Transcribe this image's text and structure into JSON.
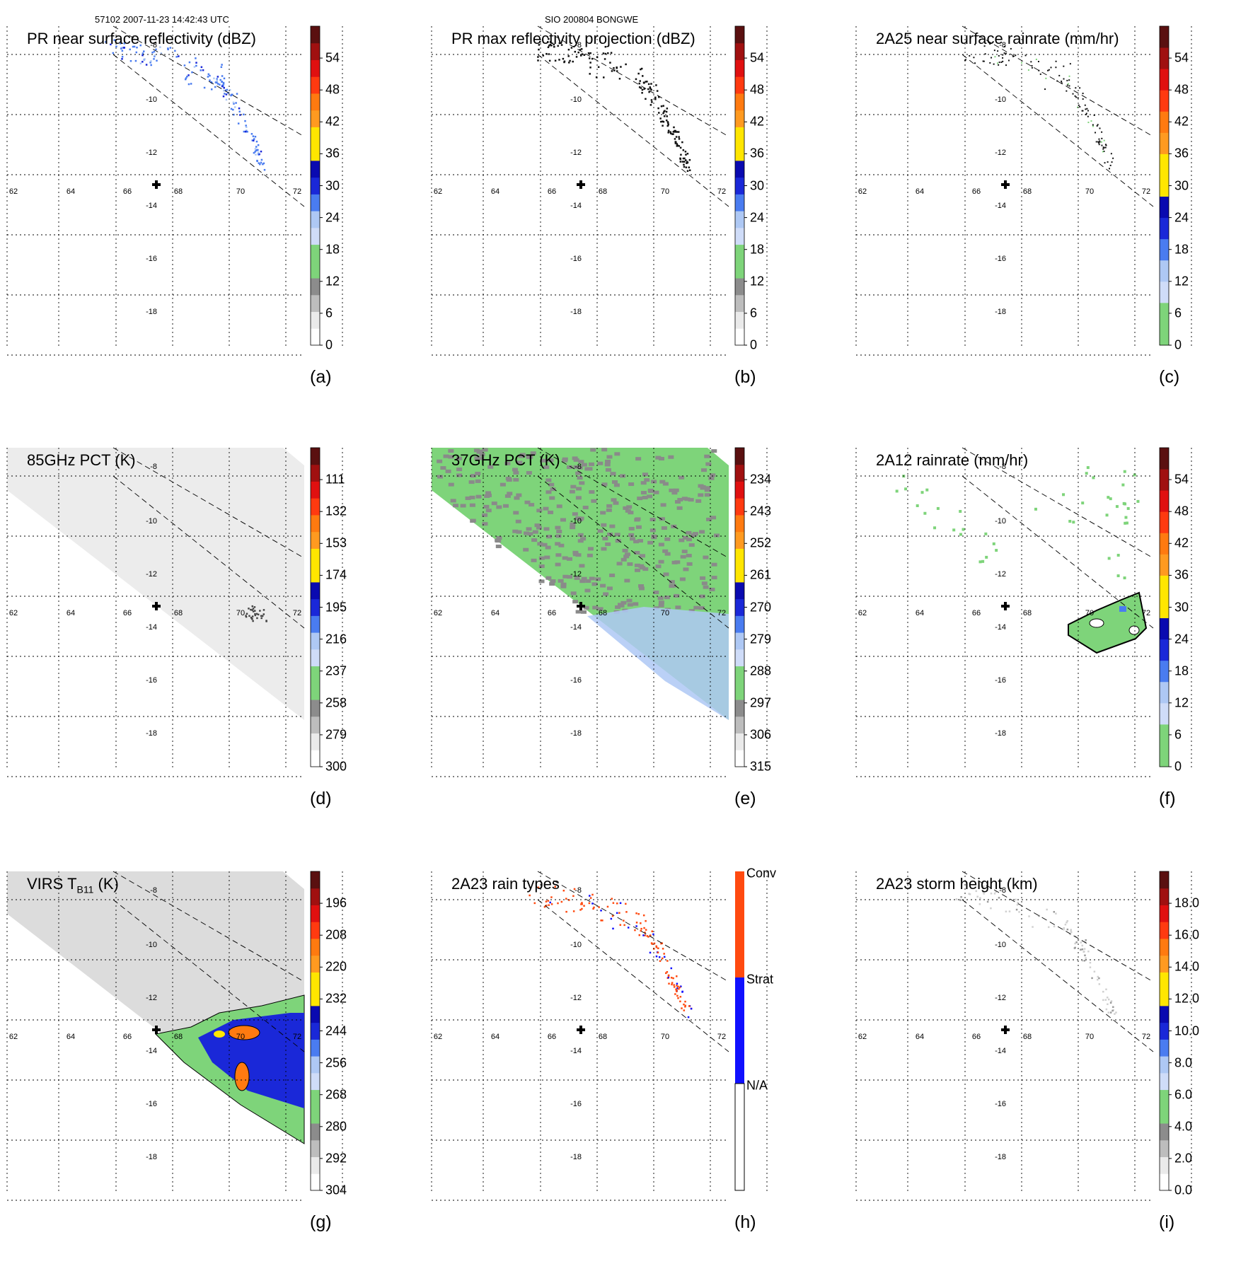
{
  "header": {
    "orbit_time": "57102 2007-11-23 14:42:43 UTC",
    "storm": "SIO 200804 BONGWE"
  },
  "axes": {
    "lon_ticks": [
      "62",
      "64",
      "66",
      "68",
      "70",
      "72"
    ],
    "lat_ticks": [
      "-8",
      "-10",
      "-12",
      "-14",
      "-16",
      "-18"
    ]
  },
  "colors": {
    "grey_light": "#f4f4f4",
    "grey_dark": "#8a8a8a",
    "green": "#7ed47a",
    "lightblue": "#aec8f4",
    "blue": "#1a28d8",
    "yellow": "#ffe600",
    "orange": "#ff7a10",
    "red": "#e01010",
    "darkred": "#5a1010",
    "conv": "#ff4a10",
    "strat": "#1010ff"
  },
  "panels": [
    {
      "key": "a",
      "label": "(a)",
      "title": "PR near surface reflectivity (dBZ)",
      "title_sub": "",
      "title_after": "",
      "colorbar": {
        "type": "std",
        "ticks": [
          "54",
          "48",
          "42",
          "36",
          "30",
          "24",
          "18",
          "12",
          "6",
          "0"
        ]
      }
    },
    {
      "key": "b",
      "label": "(b)",
      "title": "PR max reflectivity projection (dBZ)",
      "title_sub": "",
      "title_after": "",
      "colorbar": {
        "type": "std",
        "ticks": [
          "54",
          "48",
          "42",
          "36",
          "30",
          "24",
          "18",
          "12",
          "6",
          "0"
        ]
      }
    },
    {
      "key": "c",
      "label": "(c)",
      "title": "2A25 near surface rainrate (mm/hr)",
      "title_sub": "",
      "title_after": "",
      "colorbar": {
        "type": "rain",
        "ticks": [
          "54",
          "48",
          "42",
          "36",
          "30",
          "24",
          "18",
          "12",
          "6",
          "0"
        ]
      }
    },
    {
      "key": "d",
      "label": "(d)",
      "title": "85GHz PCT (K)",
      "title_sub": "",
      "title_after": "",
      "colorbar": {
        "type": "std",
        "ticks": [
          "111",
          "132",
          "153",
          "174",
          "195",
          "216",
          "237",
          "258",
          "279",
          "300"
        ]
      }
    },
    {
      "key": "e",
      "label": "(e)",
      "title": "37GHz PCT (K)",
      "title_sub": "",
      "title_after": "",
      "colorbar": {
        "type": "std",
        "ticks": [
          "234",
          "243",
          "252",
          "261",
          "270",
          "279",
          "288",
          "297",
          "306",
          "315"
        ]
      }
    },
    {
      "key": "f",
      "label": "(f)",
      "title": "2A12 rainrate (mm/hr)",
      "title_sub": "",
      "title_after": "",
      "colorbar": {
        "type": "rain",
        "ticks": [
          "54",
          "48",
          "42",
          "36",
          "30",
          "24",
          "18",
          "12",
          "6",
          "0"
        ]
      }
    },
    {
      "key": "g",
      "label": "(g)",
      "title": "VIRS T",
      "title_sub": "B11",
      "title_after": " (K)",
      "colorbar": {
        "type": "std",
        "ticks": [
          "196",
          "208",
          "220",
          "232",
          "244",
          "256",
          "268",
          "280",
          "292",
          "304"
        ]
      }
    },
    {
      "key": "h",
      "label": "(h)",
      "title": "2A23 rain types",
      "title_sub": "",
      "title_after": "",
      "colorbar": {
        "type": "raintype",
        "ticks": [
          "Conv",
          "Strat",
          "N/A"
        ]
      }
    },
    {
      "key": "i",
      "label": "(i)",
      "title": "2A23 storm height (km)",
      "title_sub": "",
      "title_after": "",
      "colorbar": {
        "type": "std",
        "ticks": [
          "18.0",
          "16.0",
          "14.0",
          "12.0",
          "10.0",
          "8.0",
          "6.0",
          "4.0",
          "2.0",
          "0.0"
        ]
      }
    }
  ]
}
